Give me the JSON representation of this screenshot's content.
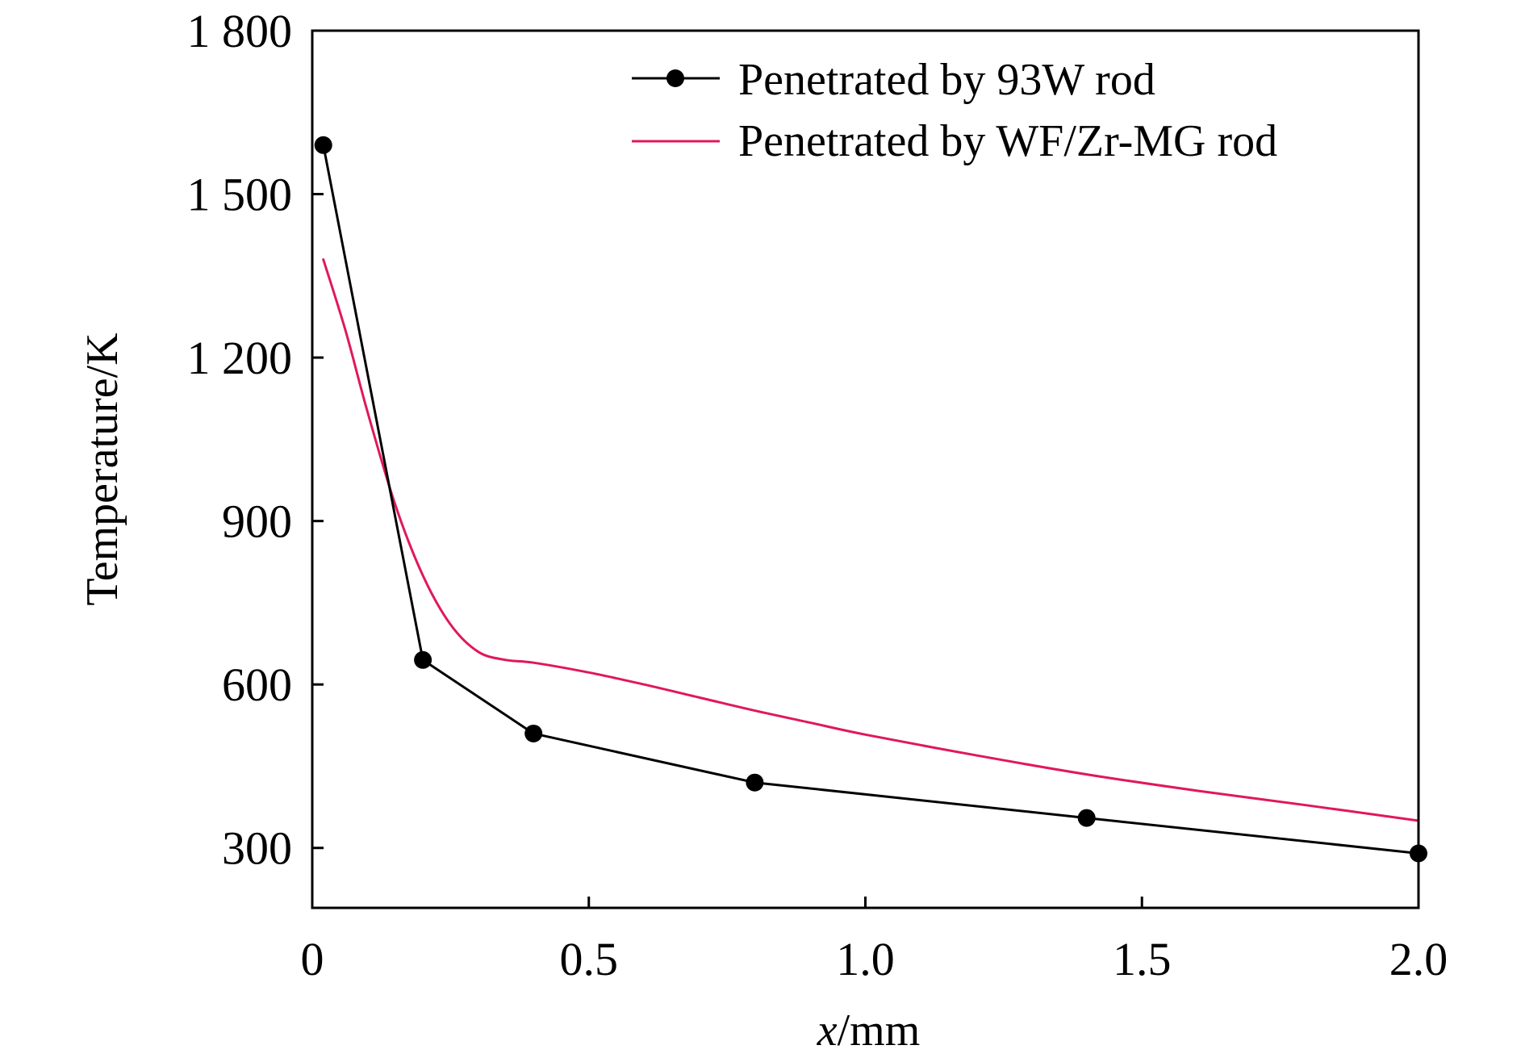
{
  "chart_data": {
    "type": "line",
    "xlabel": {
      "italic_part": "x",
      "rest": "/mm"
    },
    "ylabel": "Temperature/K",
    "xlim": [
      0,
      2.0
    ],
    "ylim": [
      190,
      1800
    ],
    "x_ticks": [
      {
        "value": 0,
        "label": "0"
      },
      {
        "value": 0.5,
        "label": "0.5"
      },
      {
        "value": 1.0,
        "label": "1.0"
      },
      {
        "value": 1.5,
        "label": "1.5"
      },
      {
        "value": 2.0,
        "label": "2.0"
      }
    ],
    "y_ticks": [
      {
        "value": 300,
        "label": "300"
      },
      {
        "value": 600,
        "label": "600"
      },
      {
        "value": 900,
        "label": "900"
      },
      {
        "value": 1200,
        "label": "1 200"
      },
      {
        "value": 1500,
        "label": "1 500"
      },
      {
        "value": 1800,
        "label": "1 800"
      }
    ],
    "grid": false,
    "legend_position": "top-right",
    "series": [
      {
        "name": "Penetrated by 93W rod",
        "color": "#000000",
        "marker": "circle",
        "smooth": false,
        "x": [
          0.02,
          0.2,
          0.4,
          0.8,
          1.4,
          2.0
        ],
        "y": [
          1590,
          645,
          510,
          420,
          355,
          290
        ]
      },
      {
        "name": "Penetrated by WF/Zr-MG rod",
        "color": "#e0185a",
        "marker": "none",
        "smooth": true,
        "x": [
          0.02,
          0.06,
          0.1,
          0.15,
          0.2,
          0.25,
          0.3,
          0.35,
          0.4,
          0.5,
          0.6,
          0.7,
          0.8,
          0.9,
          1.0,
          1.2,
          1.4,
          1.6,
          1.8,
          2.0
        ],
        "y": [
          1380,
          1250,
          1100,
          930,
          800,
          710,
          660,
          645,
          640,
          622,
          600,
          576,
          552,
          530,
          508,
          470,
          435,
          405,
          378,
          350
        ]
      }
    ]
  }
}
